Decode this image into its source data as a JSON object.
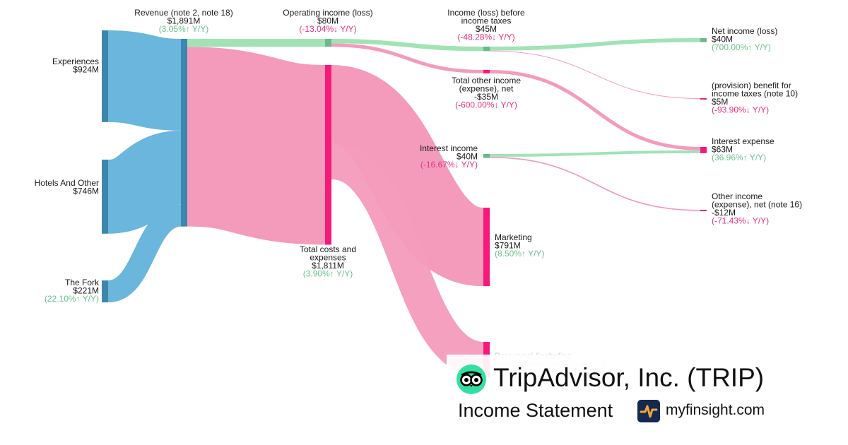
{
  "chart_data": {
    "type": "sankey",
    "unit": "M",
    "nodes": [
      {
        "id": "exp",
        "name": "Experiences",
        "value": "$924M",
        "change": "",
        "color": "#3d86ad"
      },
      {
        "id": "hot",
        "name": "Hotels And Other",
        "value": "$746M",
        "change": "",
        "color": "#3d86ad"
      },
      {
        "id": "fork",
        "name": "The Fork",
        "value": "$221M",
        "change": "(22.10%↑ Y/Y)",
        "dir": "up",
        "color": "#3d86ad"
      },
      {
        "id": "rev",
        "name": "Revenue (note 2, note 18)",
        "value": "$1,891M",
        "change": "(3.05%↑ Y/Y)",
        "dir": "up",
        "color": "#3d86ad"
      },
      {
        "id": "opinc",
        "name": "Operating income (loss)",
        "value": "$80M",
        "change": "(-13.04%↓ Y/Y)",
        "dir": "down",
        "color": "#6db78a"
      },
      {
        "id": "costs",
        "name": "Total costs and expenses",
        "value": "$1,811M",
        "change": "(3.90%↑ Y/Y)",
        "dir": "up",
        "color": "#f7197a"
      },
      {
        "id": "ibt",
        "name": "Income (loss) before income taxes",
        "value": "$45M",
        "change": "(-48.28%↓ Y/Y)",
        "dir": "down",
        "color": "#6db78a"
      },
      {
        "id": "toi",
        "name": "Total other income (expense), net",
        "value": "-$35M",
        "change": "(-600.00%↓ Y/Y)",
        "dir": "down",
        "color": "#f7197a"
      },
      {
        "id": "intinc",
        "name": "Interest income",
        "value": "$40M",
        "change": "(-16.67%↓ Y/Y)",
        "dir": "down",
        "color": "#6db78a"
      },
      {
        "id": "mkt",
        "name": "Marketing",
        "value": "$791M",
        "change": "(8.50%↑ Y/Y)",
        "dir": "up",
        "color": "#f7197a"
      },
      {
        "id": "pers",
        "name": "Personnel (including stock-based compensation of...",
        "value": "",
        "change": "",
        "color": "#f7197a"
      },
      {
        "id": "net",
        "name": "Net income (loss)",
        "value": "$40M",
        "change": "(700.00%↑ Y/Y)",
        "dir": "up",
        "color": "#6db78a"
      },
      {
        "id": "tax",
        "name": "(provision) benefit for income taxes (note 10)",
        "value": "$5M",
        "change": "(-93.90%↓ Y/Y)",
        "dir": "down",
        "color": "#f7197a"
      },
      {
        "id": "intexp",
        "name": "Interest expense",
        "value": "$63M",
        "change": "(36.96%↑ Y/Y)",
        "dir": "up",
        "color": "#f7197a"
      },
      {
        "id": "oie",
        "name": "Other income (expense), net (note 16)",
        "value": "-$12M",
        "change": "(-71.43%↓ Y/Y)",
        "dir": "down",
        "color": "#f7197a"
      }
    ],
    "links": [
      {
        "source": "exp",
        "target": "rev",
        "value": 924,
        "kind": "revenue"
      },
      {
        "source": "hot",
        "target": "rev",
        "value": 746,
        "kind": "revenue"
      },
      {
        "source": "fork",
        "target": "rev",
        "value": 221,
        "kind": "revenue"
      },
      {
        "source": "rev",
        "target": "opinc",
        "value": 80,
        "kind": "profit"
      },
      {
        "source": "rev",
        "target": "costs",
        "value": 1811,
        "kind": "cost"
      },
      {
        "source": "opinc",
        "target": "ibt",
        "value": 45,
        "kind": "profit"
      },
      {
        "source": "opinc",
        "target": "toi",
        "value": 35,
        "kind": "cost"
      },
      {
        "source": "costs",
        "target": "mkt",
        "value": 791,
        "kind": "cost"
      },
      {
        "source": "costs",
        "target": "pers",
        "value": 360,
        "kind": "cost"
      },
      {
        "source": "ibt",
        "target": "net",
        "value": 40,
        "kind": "profit"
      },
      {
        "source": "ibt",
        "target": "tax",
        "value": 5,
        "kind": "cost"
      },
      {
        "source": "toi",
        "target": "intexp",
        "value": 35,
        "kind": "cost"
      },
      {
        "source": "intinc",
        "target": "intexp",
        "value": 28,
        "kind": "profit"
      },
      {
        "source": "intinc",
        "target": "oie",
        "value": 12,
        "kind": "cost"
      }
    ],
    "link_colors": {
      "revenue": "#6bb6dc",
      "profit": "#a1e3b5",
      "cost": "#f49bbc"
    }
  },
  "brand": {
    "company": "TripAdvisor, Inc. (TRIP)",
    "statement": "Income Statement",
    "site": "myfinsight.com",
    "logo_icon": "tripadvisor-owl-icon",
    "site_icon": "myfinsight-pulse-icon"
  }
}
